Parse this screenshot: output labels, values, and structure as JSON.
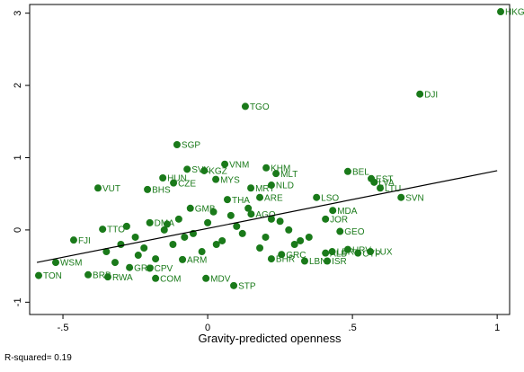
{
  "chart_data": {
    "type": "scatter",
    "x_label": "Gravity-predicted openness",
    "note": "R-squared= 0.19",
    "xlim": [
      -0.615,
      1.043
    ],
    "ylim": [
      -1.17,
      3.12
    ],
    "xticks": [
      {
        "value": -0.5,
        "label": "-.5"
      },
      0,
      {
        "value": 0.5,
        "label": ".5"
      },
      1
    ],
    "yticks": [
      -1,
      0,
      1,
      2,
      3
    ],
    "series": [
      {
        "color": "#1a7a1a",
        "x": [
          1.012,
          0.733,
          0.13,
          -0.106,
          0.059,
          -0.071,
          -0.012,
          0.202,
          0.236,
          0.028,
          -0.155,
          -0.118,
          -0.208,
          -0.379,
          0.22,
          0.149,
          0.484,
          0.565,
          0.668,
          0.575,
          0.596,
          0.068,
          0.18,
          0.376,
          0.407,
          0.432,
          0.457,
          0.484,
          0.43,
          0.413,
          0.335,
          0.407,
          0.519,
          0.562,
          0.09,
          -0.006,
          -0.18,
          -0.584,
          -0.525,
          -0.463,
          -0.345,
          -0.2,
          -0.087,
          0.22,
          0.255,
          -0.27,
          -0.363,
          -0.413,
          -0.2,
          -0.06,
          0.15,
          -0.3,
          -0.25,
          -0.15,
          -0.1,
          -0.05,
          0.0,
          0.05,
          0.1,
          0.2,
          0.25,
          0.3,
          -0.35,
          -0.28,
          -0.22,
          -0.12,
          -0.02,
          0.08,
          0.12,
          0.18,
          0.28,
          0.32,
          -0.18,
          -0.08,
          0.03,
          0.14,
          0.35,
          -0.32,
          -0.24,
          -0.14,
          0.02,
          0.22
        ],
        "y": [
          3.02,
          1.88,
          1.71,
          1.18,
          0.91,
          0.84,
          0.82,
          0.86,
          0.78,
          0.7,
          0.72,
          0.65,
          0.56,
          0.58,
          0.62,
          0.58,
          0.81,
          0.71,
          0.45,
          0.66,
          0.58,
          0.42,
          0.45,
          0.45,
          0.15,
          0.27,
          -0.02,
          -0.27,
          -0.3,
          -0.43,
          -0.43,
          -0.32,
          -0.32,
          -0.3,
          -0.77,
          -0.67,
          -0.67,
          -0.63,
          -0.45,
          -0.14,
          -0.65,
          -0.53,
          -0.41,
          -0.4,
          -0.34,
          -0.52,
          0.01,
          -0.62,
          0.1,
          0.3,
          0.22,
          -0.2,
          -0.1,
          0.0,
          0.15,
          -0.05,
          0.1,
          -0.15,
          0.05,
          -0.1,
          0.12,
          -0.2,
          -0.3,
          0.05,
          -0.25,
          -0.2,
          -0.3,
          0.2,
          -0.05,
          -0.25,
          0.0,
          -0.15,
          -0.4,
          -0.1,
          -0.2,
          0.3,
          -0.1,
          -0.45,
          -0.35,
          0.08,
          0.25,
          0.15
        ],
        "labels": [
          "HKG",
          "DJI",
          "TGO",
          "SGP",
          "VNM",
          "SVK",
          "KGZ",
          "KHM",
          "MLT",
          "MYS",
          "HUN",
          "CZE",
          "BHS",
          "VUT",
          "NLD",
          "MRT",
          "BEL",
          "EST",
          "SVN",
          "LVA",
          "LTU",
          "THA",
          "ARE",
          "LSO",
          "JOR",
          "MDA",
          "GEO",
          "HRV",
          "LBR",
          "ISR",
          "LBN",
          "ALB",
          "CYP",
          "LUX",
          "STP",
          "MDV",
          "COM",
          "TON",
          "WSM",
          "FJI",
          "RWA",
          "CPV",
          "ARM",
          "BHR",
          "GRC",
          "GRD",
          "TTO",
          "BRB",
          "DMA",
          "GMB",
          "AGO",
          null,
          null,
          null,
          null,
          null,
          null,
          null,
          null,
          null,
          null,
          null,
          null,
          null,
          null,
          null,
          null,
          null,
          null,
          null,
          null,
          null,
          null,
          null,
          null,
          null,
          null,
          null,
          null,
          null,
          null,
          null
        ]
      }
    ],
    "fit": {
      "x": [
        -0.59,
        1.0
      ],
      "y": [
        -0.45,
        0.82
      ]
    }
  }
}
